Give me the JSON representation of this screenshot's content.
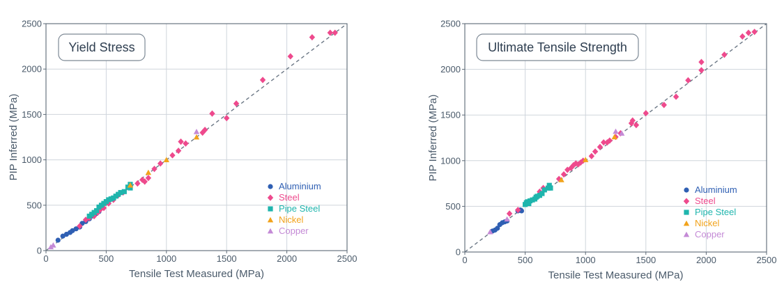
{
  "colors": {
    "Aluminium": "#2f5fb3",
    "Steel": "#ee4a8d",
    "Pipe Steel": "#1fb5ad",
    "Nickel": "#f2a31b",
    "Copper": "#c48ad6",
    "grid": "#cfd5dc",
    "axis": "#5b6875",
    "text": "#4a5a6a"
  },
  "chart_data": [
    {
      "type": "scatter",
      "title": "Yield Stress",
      "xlabel": "Tensile Test Measured (MPa)",
      "ylabel": "PIP Inferred (MPa)",
      "xlim": [
        0,
        2500
      ],
      "ylim": [
        0,
        2500
      ],
      "xticks": [
        0,
        500,
        1000,
        1500,
        2000,
        2500
      ],
      "yticks": [
        0,
        500,
        1000,
        1500,
        2000,
        2500
      ],
      "grid": true,
      "reference_line": "y = x (dashed)",
      "legend_position": "bottom-right",
      "series": [
        {
          "name": "Aluminium",
          "marker": "circle",
          "points": [
            [
              100,
              115
            ],
            [
              140,
              160
            ],
            [
              170,
              180
            ],
            [
              200,
              200
            ],
            [
              220,
              220
            ],
            [
              250,
              240
            ],
            [
              280,
              260
            ],
            [
              300,
              300
            ],
            [
              330,
              320
            ],
            [
              360,
              350
            ],
            [
              380,
              380
            ],
            [
              400,
              395
            ],
            [
              420,
              410
            ],
            [
              440,
              430
            ]
          ]
        },
        {
          "name": "Steel",
          "marker": "diamond",
          "points": [
            [
              280,
              270
            ],
            [
              330,
              340
            ],
            [
              360,
              360
            ],
            [
              400,
              380
            ],
            [
              430,
              420
            ],
            [
              450,
              450
            ],
            [
              480,
              470
            ],
            [
              520,
              520
            ],
            [
              560,
              560
            ],
            [
              600,
              610
            ],
            [
              640,
              640
            ],
            [
              700,
              710
            ],
            [
              760,
              740
            ],
            [
              800,
              780
            ],
            [
              820,
              760
            ],
            [
              850,
              800
            ],
            [
              900,
              900
            ],
            [
              950,
              960
            ],
            [
              1050,
              1050
            ],
            [
              1100,
              1100
            ],
            [
              1120,
              1200
            ],
            [
              1160,
              1180
            ],
            [
              1300,
              1300
            ],
            [
              1320,
              1330
            ],
            [
              1380,
              1510
            ],
            [
              1500,
              1460
            ],
            [
              1580,
              1620
            ],
            [
              1800,
              1880
            ],
            [
              2030,
              2140
            ],
            [
              2210,
              2350
            ],
            [
              2360,
              2400
            ],
            [
              2400,
              2400
            ]
          ]
        },
        {
          "name": "Pipe Steel",
          "marker": "square",
          "points": [
            [
              360,
              380
            ],
            [
              380,
              400
            ],
            [
              400,
              420
            ],
            [
              420,
              440
            ],
            [
              440,
              480
            ],
            [
              460,
              500
            ],
            [
              480,
              520
            ],
            [
              500,
              540
            ],
            [
              520,
              560
            ],
            [
              540,
              570
            ],
            [
              560,
              580
            ],
            [
              580,
              600
            ],
            [
              600,
              620
            ],
            [
              620,
              640
            ],
            [
              650,
              650
            ],
            [
              680,
              700
            ],
            [
              700,
              730
            ],
            [
              700,
              690
            ]
          ]
        },
        {
          "name": "Nickel",
          "marker": "triangle",
          "points": [
            [
              700,
              720
            ],
            [
              850,
              860
            ],
            [
              1000,
              1000
            ],
            [
              1250,
              1250
            ]
          ]
        },
        {
          "name": "Copper",
          "marker": "triangle",
          "points": [
            [
              40,
              40
            ],
            [
              60,
              60
            ],
            [
              1250,
              1310
            ]
          ]
        }
      ]
    },
    {
      "type": "scatter",
      "title": "Ultimate Tensile Strength",
      "xlabel": "Tensile Test Measured (MPa)",
      "ylabel": "PIP Inferred (MPa)",
      "xlim": [
        0,
        2500
      ],
      "ylim": [
        0,
        2500
      ],
      "xticks": [
        0,
        500,
        1000,
        1500,
        2000,
        2500
      ],
      "yticks": [
        0,
        500,
        1000,
        1500,
        2000,
        2500
      ],
      "grid": true,
      "reference_line": "y = x (dashed)",
      "legend_position": "bottom-right",
      "series": [
        {
          "name": "Aluminium",
          "marker": "circle",
          "points": [
            [
              230,
              230
            ],
            [
              250,
              240
            ],
            [
              270,
              260
            ],
            [
              290,
              300
            ],
            [
              310,
              320
            ],
            [
              330,
              330
            ],
            [
              350,
              340
            ],
            [
              440,
              450
            ],
            [
              460,
              460
            ],
            [
              470,
              450
            ]
          ]
        },
        {
          "name": "Steel",
          "marker": "diamond",
          "points": [
            [
              370,
              420
            ],
            [
              440,
              460
            ],
            [
              620,
              660
            ],
            [
              650,
              700
            ],
            [
              700,
              720
            ],
            [
              780,
              800
            ],
            [
              820,
              850
            ],
            [
              850,
              900
            ],
            [
              880,
              920
            ],
            [
              900,
              950
            ],
            [
              920,
              970
            ],
            [
              940,
              960
            ],
            [
              960,
              980
            ],
            [
              980,
              1000
            ],
            [
              1050,
              1050
            ],
            [
              1080,
              1100
            ],
            [
              1120,
              1150
            ],
            [
              1150,
              1200
            ],
            [
              1180,
              1200
            ],
            [
              1200,
              1220
            ],
            [
              1250,
              1260
            ],
            [
              1290,
              1300
            ],
            [
              1380,
              1410
            ],
            [
              1390,
              1440
            ],
            [
              1420,
              1390
            ],
            [
              1500,
              1520
            ],
            [
              1650,
              1610
            ],
            [
              1750,
              1700
            ],
            [
              1850,
              1880
            ],
            [
              1960,
              1990
            ],
            [
              1960,
              2080
            ],
            [
              2150,
              2160
            ],
            [
              2300,
              2360
            ],
            [
              2350,
              2400
            ],
            [
              2400,
              2410
            ]
          ]
        },
        {
          "name": "Pipe Steel",
          "marker": "square",
          "points": [
            [
              500,
              520
            ],
            [
              510,
              540
            ],
            [
              520,
              550
            ],
            [
              530,
              530
            ],
            [
              540,
              560
            ],
            [
              560,
              570
            ],
            [
              580,
              580
            ],
            [
              590,
              600
            ],
            [
              600,
              610
            ],
            [
              620,
              620
            ],
            [
              640,
              640
            ],
            [
              660,
              680
            ],
            [
              690,
              700
            ],
            [
              700,
              730
            ],
            [
              710,
              700
            ]
          ]
        },
        {
          "name": "Nickel",
          "marker": "triangle",
          "points": [
            [
              800,
              790
            ],
            [
              1000,
              1010
            ],
            [
              1240,
              1260
            ]
          ]
        },
        {
          "name": "Copper",
          "marker": "triangle",
          "points": [
            [
              210,
              220
            ],
            [
              350,
              360
            ],
            [
              1250,
              1320
            ],
            [
              1300,
              1300
            ]
          ]
        }
      ]
    }
  ]
}
